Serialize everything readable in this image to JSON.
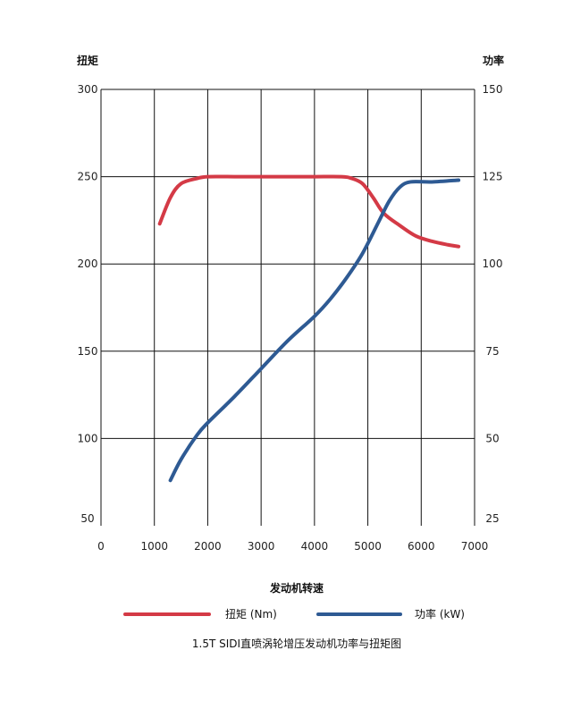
{
  "chart_data": {
    "type": "line",
    "title": "1.5T SIDI直喷涡轮增压发动机功率与扭矩图",
    "xlabel": "发动机转速",
    "ylabel_left": "扭矩",
    "ylabel_right": "功率",
    "x_ticks": [
      0,
      1000,
      2000,
      3000,
      4000,
      5000,
      6000,
      7000
    ],
    "x_tick_labels": [
      "0",
      "1000",
      "2000",
      "3000",
      "4000",
      "5000",
      "6000",
      "7000"
    ],
    "xlim": [
      0,
      7000
    ],
    "y_left_ticks": [
      50,
      100,
      150,
      200,
      250,
      300
    ],
    "y_left_tick_labels": [
      "50",
      "100",
      "150",
      "200",
      "250",
      "300"
    ],
    "y_left_lim": [
      50,
      300
    ],
    "y_right_ticks": [
      25,
      50,
      75,
      100,
      125,
      150
    ],
    "y_right_tick_labels": [
      "25",
      "50",
      "75",
      "100",
      "125",
      "150"
    ],
    "y_right_lim": [
      25,
      150
    ],
    "grid": true,
    "legend_position": "bottom",
    "series": [
      {
        "name": "扭矩 (Nm)",
        "axis": "left",
        "color": "#d43a46",
        "points": [
          [
            1100,
            223
          ],
          [
            1300,
            238
          ],
          [
            1500,
            246
          ],
          [
            1800,
            249
          ],
          [
            2000,
            250
          ],
          [
            2500,
            250
          ],
          [
            3000,
            250
          ],
          [
            3500,
            250
          ],
          [
            4000,
            250
          ],
          [
            4500,
            250
          ],
          [
            4700,
            249
          ],
          [
            4900,
            246
          ],
          [
            5100,
            238
          ],
          [
            5300,
            229
          ],
          [
            5600,
            222
          ],
          [
            5900,
            216
          ],
          [
            6200,
            213
          ],
          [
            6500,
            211
          ],
          [
            6700,
            210
          ]
        ]
      },
      {
        "name": "功率 (kW)",
        "axis": "right",
        "color": "#2e5a93",
        "points": [
          [
            1300,
            38
          ],
          [
            1500,
            44
          ],
          [
            1800,
            51
          ],
          [
            2000,
            54.5
          ],
          [
            2500,
            62
          ],
          [
            3000,
            70
          ],
          [
            3500,
            78
          ],
          [
            4000,
            85
          ],
          [
            4300,
            90
          ],
          [
            4600,
            96
          ],
          [
            4900,
            103
          ],
          [
            5200,
            112
          ],
          [
            5400,
            118
          ],
          [
            5600,
            122
          ],
          [
            5800,
            123.5
          ],
          [
            6200,
            123.5
          ],
          [
            6700,
            124
          ]
        ]
      }
    ]
  }
}
